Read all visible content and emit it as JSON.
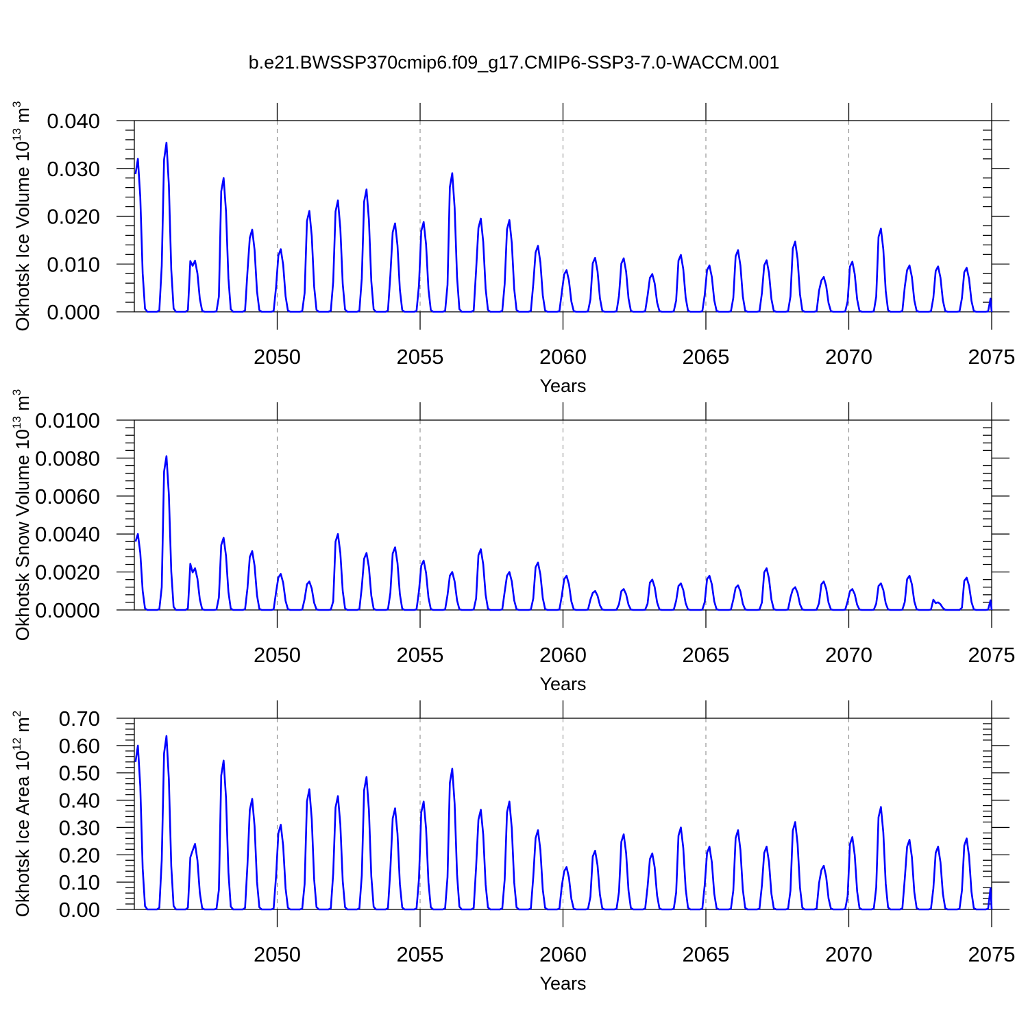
{
  "figure_title": "b.e21.BWSSP370cmip6.f09_g17.CMIP6-SSP3-7.0-WACCM.001",
  "line_color": "#0000ff",
  "chart_data": [
    {
      "type": "line",
      "title": "b.e21.BWSSP370cmip6.f09_g17.CMIP6-SSP3-7.0-WACCM.001",
      "xlabel": "Years",
      "ylabel": "Okhotsk Ice Volume 10",
      "ylabel_exp": "13",
      "ylabel_unit": " m",
      "ylabel_unit_exp": "3",
      "xlim": [
        2045.0,
        2075.0
      ],
      "ylim": [
        0,
        0.04
      ],
      "xticks": [
        2050,
        2055,
        2060,
        2065,
        2070,
        2075
      ],
      "xtick_labels": [
        "2050",
        "2055",
        "2060",
        "2065",
        "2070",
        "2075"
      ],
      "yticks": [
        0,
        0.01,
        0.02,
        0.03,
        0.04
      ],
      "ytick_labels": [
        "0.000",
        "0.010",
        "0.020",
        "0.030",
        "0.040"
      ],
      "grid": "vertical dashed",
      "series": [
        {
          "name": "Okhotsk Ice Volume",
          "annual_peaks": [
            0.032,
            0.0354,
            0.0107,
            0.028,
            0.0172,
            0.0131,
            0.0211,
            0.0233,
            0.0256,
            0.0185,
            0.0188,
            0.029,
            0.0195,
            0.0192,
            0.0138,
            0.0087,
            0.0113,
            0.0112,
            0.0079,
            0.0119,
            0.0097,
            0.0129,
            0.0108,
            0.0147,
            0.0073,
            0.0105,
            0.0174,
            0.0097,
            0.0095,
            0.0092
          ]
        }
      ]
    },
    {
      "type": "line",
      "xlabel": "Years",
      "ylabel": "Okhotsk Snow Volume 10",
      "ylabel_exp": "13",
      "ylabel_unit": " m",
      "ylabel_unit_exp": "3",
      "xlim": [
        2045.0,
        2075.0
      ],
      "ylim": [
        0,
        0.01
      ],
      "xticks": [
        2050,
        2055,
        2060,
        2065,
        2070,
        2075
      ],
      "xtick_labels": [
        "2050",
        "2055",
        "2060",
        "2065",
        "2070",
        "2075"
      ],
      "yticks": [
        0,
        0.002,
        0.004,
        0.006,
        0.008,
        0.01
      ],
      "ytick_labels": [
        "0.0000",
        "0.0020",
        "0.0040",
        "0.0060",
        "0.0080",
        "0.0100"
      ],
      "grid": "vertical dashed",
      "series": [
        {
          "name": "Okhotsk Snow Volume",
          "annual_peaks": [
            0.004,
            0.0081,
            0.0022,
            0.0038,
            0.0031,
            0.0019,
            0.0015,
            0.004,
            0.003,
            0.0033,
            0.0026,
            0.002,
            0.0032,
            0.002,
            0.0025,
            0.0018,
            0.001,
            0.0011,
            0.0016,
            0.0014,
            0.0018,
            0.0013,
            0.0022,
            0.0012,
            0.0015,
            0.0011,
            0.0014,
            0.0018,
            0.0004,
            0.0017
          ]
        }
      ]
    },
    {
      "type": "line",
      "xlabel": "Years",
      "ylabel": "Okhotsk Ice Area 10",
      "ylabel_exp": "12",
      "ylabel_unit": " m",
      "ylabel_unit_exp": "2",
      "xlim": [
        2045.0,
        2075.0
      ],
      "ylim": [
        0,
        0.7
      ],
      "xticks": [
        2050,
        2055,
        2060,
        2065,
        2070,
        2075
      ],
      "xtick_labels": [
        "2050",
        "2055",
        "2060",
        "2065",
        "2070",
        "2075"
      ],
      "yticks": [
        0,
        0.1,
        0.2,
        0.3,
        0.4,
        0.5,
        0.6,
        0.7
      ],
      "ytick_labels": [
        "0.00",
        "0.10",
        "0.20",
        "0.30",
        "0.40",
        "0.50",
        "0.60",
        "0.70"
      ],
      "grid": "vertical dashed",
      "series": [
        {
          "name": "Okhotsk Ice Area",
          "annual_peaks": [
            0.6,
            0.635,
            0.24,
            0.545,
            0.405,
            0.31,
            0.44,
            0.415,
            0.485,
            0.37,
            0.395,
            0.515,
            0.365,
            0.395,
            0.29,
            0.155,
            0.215,
            0.275,
            0.205,
            0.3,
            0.23,
            0.29,
            0.23,
            0.32,
            0.16,
            0.265,
            0.375,
            0.255,
            0.23,
            0.26
          ]
        }
      ]
    }
  ]
}
